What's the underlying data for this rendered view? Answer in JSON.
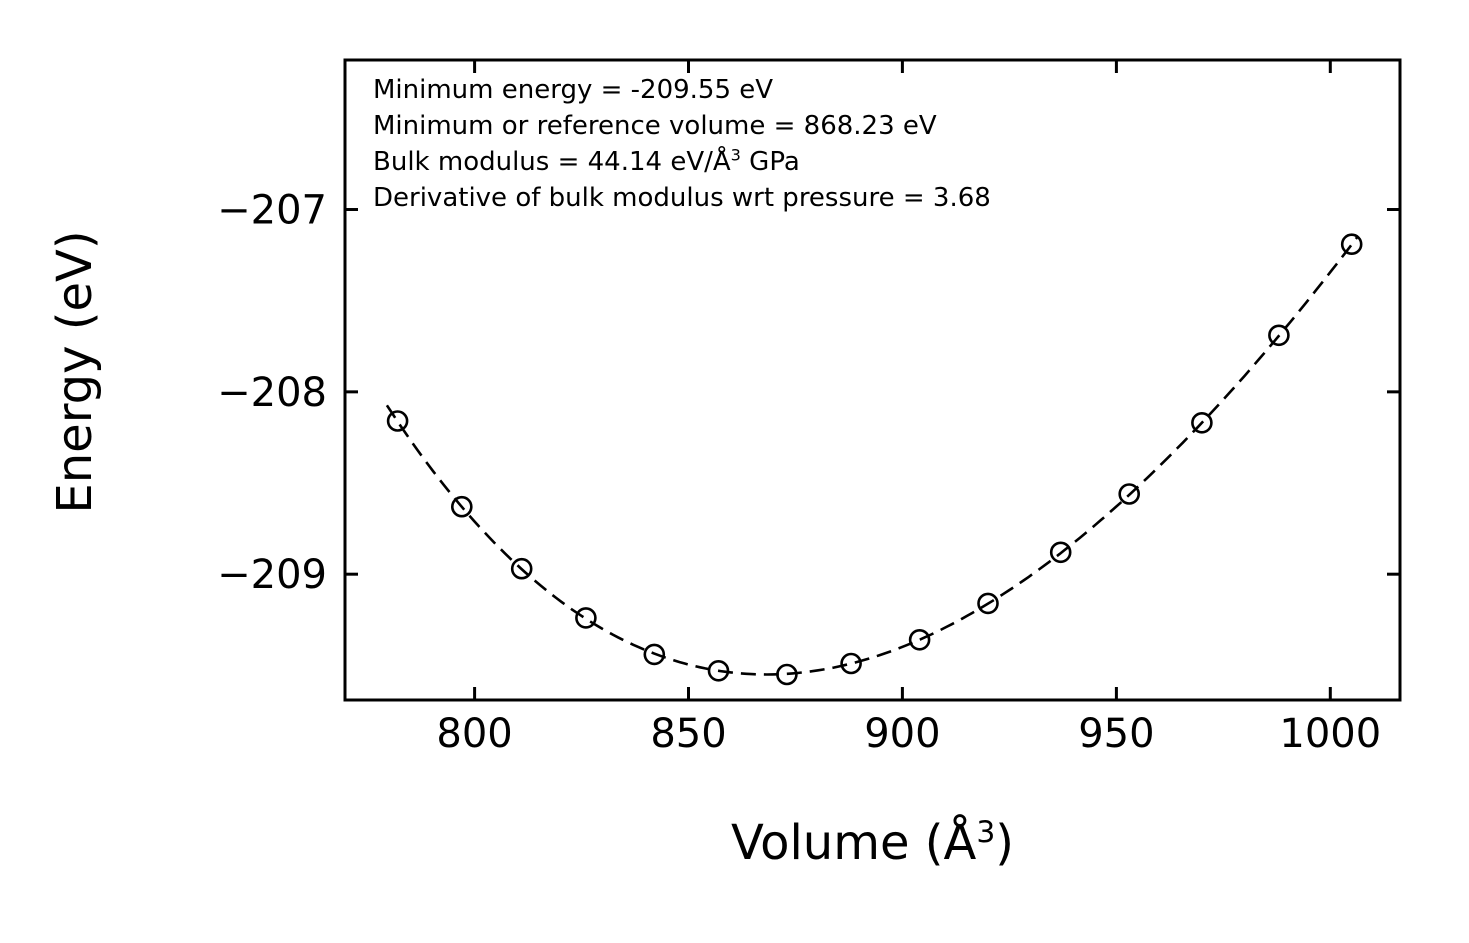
{
  "figure": {
    "background": "#ffffff",
    "axis_color": "#000000",
    "text_color": "#000000"
  },
  "annotation_box": {
    "line1": "Minimum energy = -209.55 eV",
    "line2": "Minimum or reference volume = 868.23 eV",
    "line3_prefix": "Bulk modulus = 44.14 eV/Å",
    "line3_sup": "3",
    "line3_suffix": " GPa",
    "line4": "Derivative of bulk modulus wrt pressure = 3.68"
  },
  "axis_labels": {
    "y": "Energy (eV)",
    "x_prefix": "Volume (Å",
    "x_sup": "3",
    "x_suffix": ")"
  },
  "chart_data": {
    "type": "scatter",
    "title": "",
    "xlabel": "Volume (Å³)",
    "ylabel": "Energy (eV)",
    "xlim": [
      769.7,
      1016.3
    ],
    "ylim": [
      -209.69,
      -206.18
    ],
    "x_ticks": [
      800,
      850,
      900,
      950,
      1000
    ],
    "x_tick_labels": [
      "800",
      "850",
      "900",
      "950",
      "1000"
    ],
    "y_ticks": [
      -207,
      -208,
      -209
    ],
    "y_tick_labels": [
      "−207",
      "−208",
      "−209"
    ],
    "grid": false,
    "legend": null,
    "annotations": [
      "Minimum energy = -209.55 eV",
      "Minimum or reference volume = 868.23 eV",
      "Bulk modulus = 44.14 eV/Å³ GPa",
      "Derivative of bulk modulus wrt pressure = 3.68"
    ],
    "series": [
      {
        "name": "calculated-energy-points",
        "type": "scatter",
        "marker": "open-circle",
        "color": "#000000",
        "x": [
          782,
          797,
          811,
          826,
          842,
          857,
          873,
          888,
          904,
          920,
          937,
          953,
          970,
          988,
          1005
        ],
        "y": [
          -208.16,
          -208.63,
          -208.97,
          -209.24,
          -209.44,
          -209.53,
          -209.55,
          -209.49,
          -209.36,
          -209.16,
          -208.88,
          -208.56,
          -208.17,
          -207.69,
          -207.19
        ]
      },
      {
        "name": "equation-of-state-fit",
        "type": "line",
        "style": "dashed",
        "color": "#000000",
        "fit_parameters": {
          "minimum_energy_eV": -209.55,
          "reference_volume": 868.23,
          "bulk_modulus_GPa": 44.14,
          "bulk_modulus_pressure_derivative": 3.68
        }
      }
    ]
  }
}
